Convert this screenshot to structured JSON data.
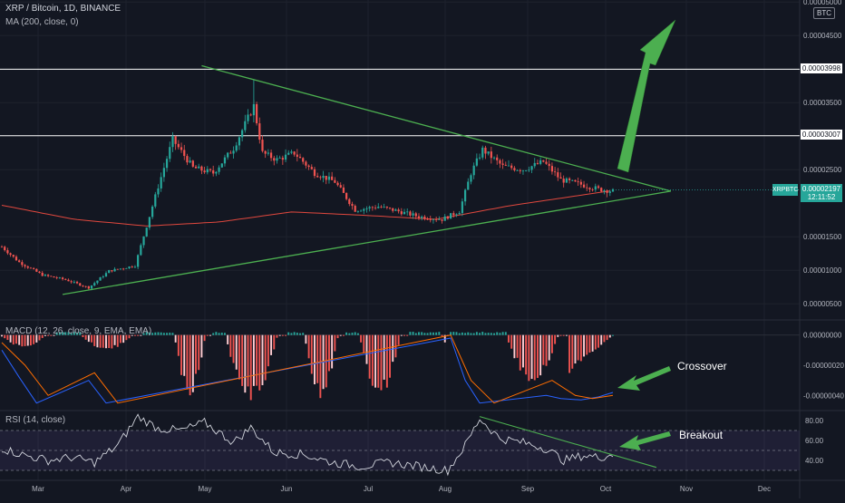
{
  "header": {
    "symbol_line": "XRP / Bitcoin, 1D, BINANCE",
    "ma_label": "MA (200, close, 0)",
    "macd_label": "MACD (12, 26, close, 9, EMA, EMA)",
    "rsi_label": "RSI (14, close)",
    "currency_badge": "BTC"
  },
  "price_tag": {
    "symbol": "XRPBTC",
    "price": "0.00002197",
    "countdown": "12:11:52"
  },
  "level_labels": [
    "0.00003998",
    "0.00003007"
  ],
  "annotations": {
    "crossover": "Crossover",
    "breakout": "Breakout"
  },
  "colors": {
    "background": "#131722",
    "up": "#26a69a",
    "down": "#ef5350",
    "trendline": "#4caf50",
    "ma": "#e0483e",
    "arrow": "#4caf50",
    "price_tag": "#26a69a"
  },
  "chart_data": [
    {
      "type": "candlestick",
      "title": "XRP / Bitcoin, 1D, BINANCE",
      "x_ticks": [
        "Mar",
        "Apr",
        "May",
        "Jun",
        "Jul",
        "Aug",
        "Sep",
        "Oct",
        "Nov",
        "Dec"
      ],
      "y_ticks": [
        "0.00005000",
        "0.00004500",
        "0.00003500",
        "0.00002500",
        "0.00001500",
        "0.00001000",
        "0.00000500"
      ],
      "ylim": [
        2.6e-06,
        5.03e-05
      ],
      "horizontal_levels": [
        3.998e-05,
        3.007e-05
      ],
      "last_price": 2.197e-05,
      "overlays": [
        "MA (200, close, 0)"
      ],
      "path": [
        [
          0,
          1.35e-05
        ],
        [
          6,
          1.12e-05
        ],
        [
          14,
          9.3e-06
        ],
        [
          22,
          8.6e-06
        ],
        [
          30,
          7.4e-06
        ],
        [
          37,
          9.9e-06
        ],
        [
          46,
          1.07e-05
        ],
        [
          54,
          2.25e-05
        ],
        [
          59,
          2.95e-05
        ],
        [
          66,
          2.53e-05
        ],
        [
          73,
          2.45e-05
        ],
        [
          80,
          2.82e-05
        ],
        [
          87,
          3.45e-05
        ],
        [
          90,
          2.75e-05
        ],
        [
          95,
          2.65e-05
        ],
        [
          101,
          2.75e-05
        ],
        [
          108,
          2.45e-05
        ],
        [
          115,
          2.32e-05
        ],
        [
          122,
          1.9e-05
        ],
        [
          130,
          1.95e-05
        ],
        [
          137,
          1.88e-05
        ],
        [
          144,
          1.8e-05
        ],
        [
          152,
          1.76e-05
        ],
        [
          158,
          1.88e-05
        ],
        [
          162,
          2.45e-05
        ],
        [
          166,
          2.8e-05
        ],
        [
          173,
          2.55e-05
        ],
        [
          180,
          2.5e-05
        ],
        [
          187,
          2.62e-05
        ],
        [
          193,
          2.35e-05
        ],
        [
          200,
          2.28e-05
        ],
        [
          206,
          2.21e-05
        ],
        [
          211,
          2.18e-05
        ]
      ],
      "ma_path": [
        [
          0,
          1.97e-05
        ],
        [
          25,
          1.76e-05
        ],
        [
          50,
          1.66e-05
        ],
        [
          75,
          1.72e-05
        ],
        [
          100,
          1.87e-05
        ],
        [
          125,
          1.82e-05
        ],
        [
          150,
          1.76e-05
        ],
        [
          175,
          1.96e-05
        ],
        [
          200,
          2.12e-05
        ],
        [
          211,
          2.19e-05
        ]
      ],
      "trendlines": [
        {
          "name": "upper",
          "from": [
            69,
            4.05e-05
          ],
          "to": [
            231,
            2.18e-05
          ]
        },
        {
          "name": "lower",
          "from": [
            21,
            6.4e-06
          ],
          "to": [
            231,
            2.18e-05
          ]
        }
      ]
    },
    {
      "type": "histogram",
      "title": "MACD (12, 26, close, 9, EMA, EMA)",
      "y_ticks": [
        "0.00000000",
        "-0.00000020",
        "-0.00000040"
      ],
      "ylim": [
        -5e-07,
        1e-07
      ]
    },
    {
      "type": "line",
      "title": "RSI (14, close)",
      "y_ticks": [
        "80.00",
        "60.00",
        "40.00"
      ],
      "ylim": [
        20,
        90
      ],
      "band": [
        30,
        70
      ],
      "path": [
        [
          0,
          52
        ],
        [
          8,
          45
        ],
        [
          16,
          40
        ],
        [
          24,
          43
        ],
        [
          32,
          38
        ],
        [
          40,
          55
        ],
        [
          47,
          84
        ],
        [
          54,
          72
        ],
        [
          62,
          70
        ],
        [
          70,
          78
        ],
        [
          80,
          58
        ],
        [
          86,
          73
        ],
        [
          94,
          48
        ],
        [
          104,
          46
        ],
        [
          114,
          38
        ],
        [
          124,
          34
        ],
        [
          134,
          38
        ],
        [
          144,
          34
        ],
        [
          154,
          30
        ],
        [
          160,
          55
        ],
        [
          165,
          82
        ],
        [
          172,
          62
        ],
        [
          180,
          58
        ],
        [
          188,
          52
        ],
        [
          194,
          40
        ],
        [
          201,
          45
        ],
        [
          206,
          43
        ],
        [
          211,
          46
        ]
      ]
    }
  ]
}
